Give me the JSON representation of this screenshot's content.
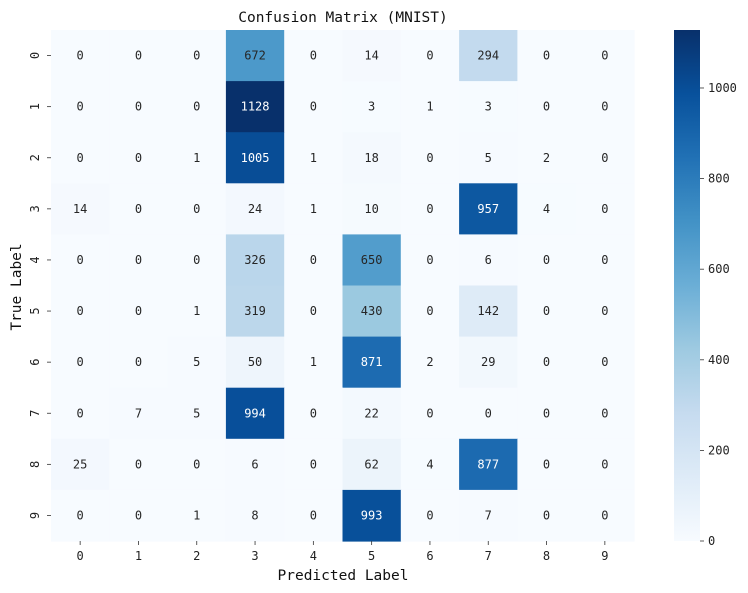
{
  "chart_data": {
    "type": "heatmap",
    "title": "Confusion Matrix (MNIST)",
    "xlabel": "Predicted Label",
    "ylabel": "True Label",
    "x_categories": [
      "0",
      "1",
      "2",
      "3",
      "4",
      "5",
      "6",
      "7",
      "8",
      "9"
    ],
    "y_categories": [
      "0",
      "1",
      "2",
      "3",
      "4",
      "5",
      "6",
      "7",
      "8",
      "9"
    ],
    "values": [
      [
        0,
        0,
        0,
        672,
        0,
        14,
        0,
        294,
        0,
        0
      ],
      [
        0,
        0,
        0,
        1128,
        0,
        3,
        1,
        3,
        0,
        0
      ],
      [
        0,
        0,
        1,
        1005,
        1,
        18,
        0,
        5,
        2,
        0
      ],
      [
        14,
        0,
        0,
        24,
        1,
        10,
        0,
        957,
        4,
        0
      ],
      [
        0,
        0,
        0,
        326,
        0,
        650,
        0,
        6,
        0,
        0
      ],
      [
        0,
        0,
        1,
        319,
        0,
        430,
        0,
        142,
        0,
        0
      ],
      [
        0,
        0,
        5,
        50,
        1,
        871,
        2,
        29,
        0,
        0
      ],
      [
        0,
        7,
        5,
        994,
        0,
        22,
        0,
        0,
        0,
        0
      ],
      [
        25,
        0,
        0,
        6,
        0,
        62,
        4,
        877,
        0,
        0
      ],
      [
        0,
        0,
        1,
        8,
        0,
        993,
        0,
        7,
        0,
        0
      ]
    ],
    "vmin": 0,
    "vmax": 1128,
    "colormap": "Blues",
    "colorbar_ticks": [
      "0",
      "200",
      "400",
      "600",
      "800",
      "1000"
    ],
    "colors": {
      "low": "#f7fbff",
      "high": "#08306b",
      "text_dark": "#262626",
      "text_light": "#ffffff"
    }
  }
}
